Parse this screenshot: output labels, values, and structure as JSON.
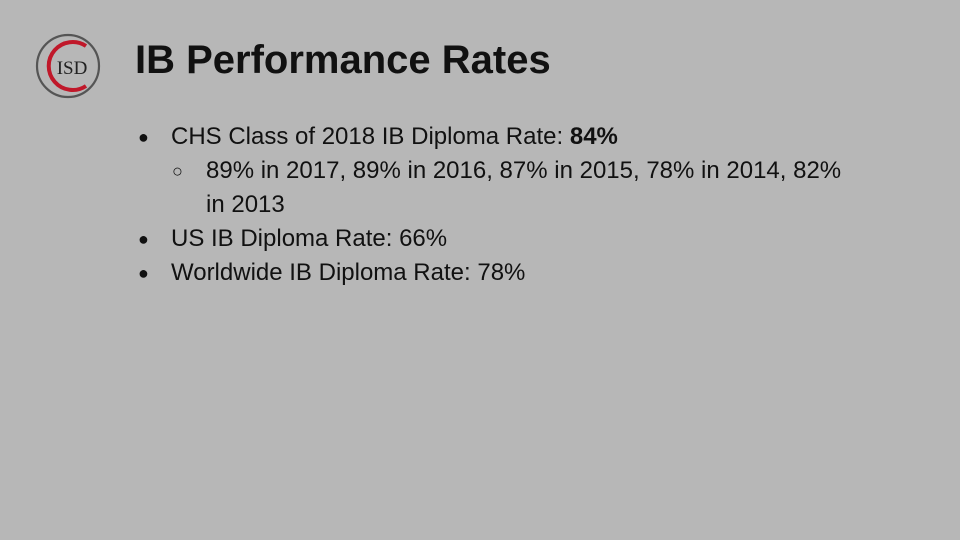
{
  "logo": {
    "text": "ISD",
    "letter": "C",
    "ring_color": "#555555",
    "letter_color": "#c0182a"
  },
  "title": "IB Performance Rates",
  "bullets": [
    {
      "prefix": "CHS Class of 2018 IB Diploma Rate: ",
      "value": "84%",
      "sub": "89% in 2017, 89% in 2016, 87% in 2015, 78% in 2014, 82% in 2013"
    },
    {
      "text": "US IB Diploma Rate: 66%"
    },
    {
      "text": "Worldwide IB Diploma Rate: 78%"
    }
  ],
  "colors": {
    "background": "#b7b7b7",
    "text": "#111111"
  }
}
